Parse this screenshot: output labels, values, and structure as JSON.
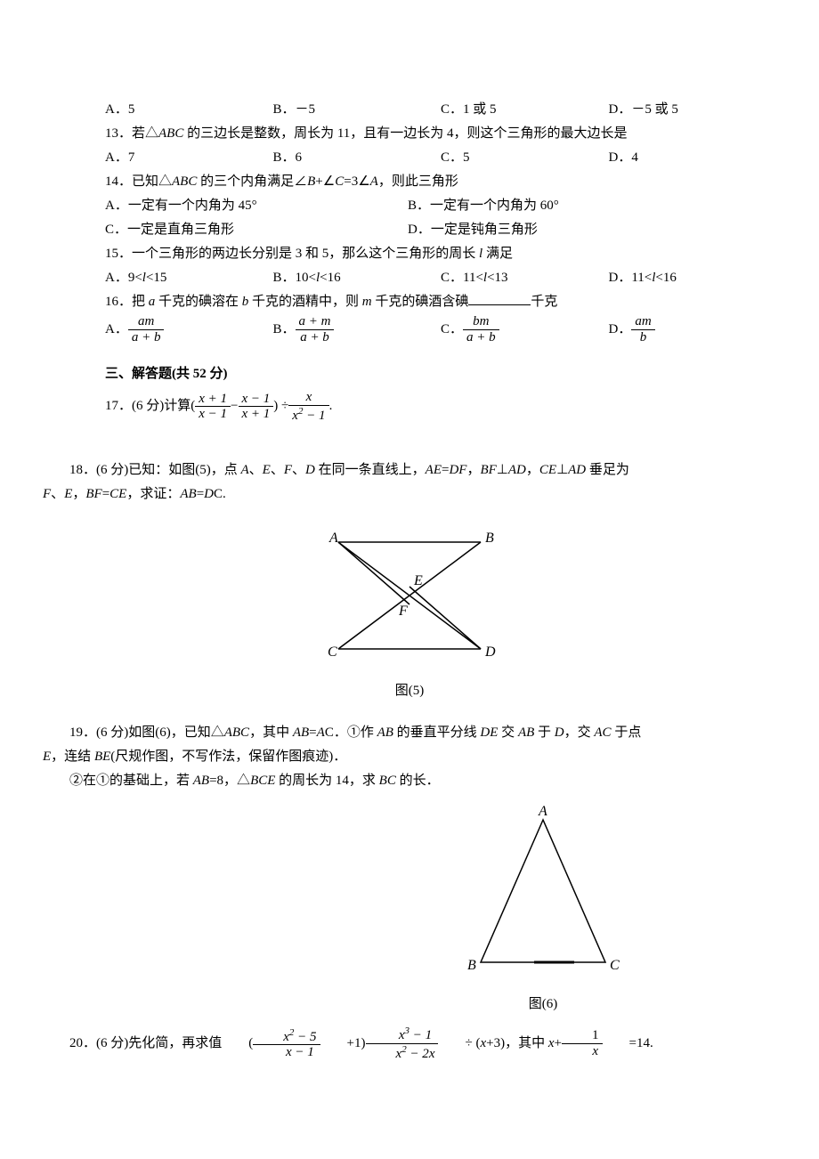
{
  "q12_opts": {
    "a": "A．5",
    "b": "B．－5",
    "c": "C．1 或 5",
    "d": "D．－5 或 5"
  },
  "q13": {
    "text": "13．若△<span class='italic'>ABC</span> 的三边长是整数，周长为 11，且有一边长为 4，则这个三角形的最大边长是",
    "a": "A．7",
    "b": "B．6",
    "c": "C．5",
    "d": "D．4"
  },
  "q14": {
    "text": "14．已知△<span class='italic'>ABC</span> 的三个内角满足∠<span class='italic'>B</span>+∠<span class='italic'>C</span>=3∠<span class='italic'>A</span>，则此三角形",
    "a": "A．一定有一个内角为 45°",
    "b": "B．一定有一个内角为 60°",
    "c": "C．一定是直角三角形",
    "d": "D．一定是钝角三角形"
  },
  "q15": {
    "text": "15．一个三角形的两边长分别是 3 和 5，那么这个三角形的周长 <span class='italic'>l</span> 满足",
    "a": "A．9<<span class='italic'>l</span><15",
    "b": "B．10<<span class='italic'>l</span><16",
    "c": "C．11<<span class='italic'>l</span><13",
    "d": "D．11<<span class='italic'>l</span><16"
  },
  "q16": {
    "text": "16．把 <span class='italic'>a</span> 千克的碘溶在 <span class='italic'>b</span> 千克的酒精中，则 <span class='italic'>m</span> 千克的碘酒含碘",
    "suffix": "千克",
    "a_num": "am",
    "a_den": "a + b",
    "b_num": "a + m",
    "b_den": "a + b",
    "c_num": "bm",
    "c_den": "a + b",
    "d_num": "am",
    "d_den": "b"
  },
  "section3": "三、解答题(共 52 分)",
  "q17": {
    "prefix": "17．(6 分)计算",
    "f1_num": "x + 1",
    "f1_den": "x − 1",
    "f2_num": "x − 1",
    "f2_den": "x + 1",
    "f3_num": "x",
    "f3_den_raw": "x² − 1"
  },
  "q18": {
    "line1": "18．(6 分)已知：如图(5)，点 <span class='italic'>A</span>、<span class='italic'>E</span>、<span class='italic'>F</span>、<span class='italic'>D</span> 在同一条直线上，<span class='italic'>AE</span>=<span class='italic'>DF</span>，<span class='italic'>BF</span>⊥<span class='italic'>AD</span>，<span class='italic'>CE</span>⊥<span class='italic'>AD</span> 垂足为",
    "line2": "<span class='italic'>F</span>、<span class='italic'>E</span>，<span class='italic'>BF</span>=<span class='italic'>CE</span>，求证：<span class='italic'>AB</span>=<span class='italic'>D</span>C."
  },
  "fig5": {
    "labels": {
      "A": "A",
      "B": "B",
      "E": "E",
      "F": "F",
      "C": "C",
      "D": "D"
    },
    "caption": "图(5)"
  },
  "q19": {
    "line1": "19．(6 分)如图(6)，已知△<span class='italic'>ABC</span>，其中 <span class='italic'>AB</span>=<span class='italic'>A</span>C．①作 <span class='italic'>AB</span> 的垂直平分线 <span class='italic'>DE</span> 交 <span class='italic'>AB</span> 于 <span class='italic'>D</span>，交 <span class='italic'>AC</span> 于点",
    "line2": "<span class='italic'>E</span>，连结 <span class='italic'>BE</span>(尺规作图，不写作法，保留作图痕迹)．",
    "line3": "②在①的基础上，若 <span class='italic'>AB</span>=8，△<span class='italic'>BCE</span> 的周长为 14，求 <span class='italic'>BC</span> 的长．"
  },
  "fig6": {
    "labels": {
      "A": "A",
      "B": "B",
      "C": "C"
    },
    "caption": "图(6)"
  },
  "q20": {
    "prefix": "20．(6 分)先化简，再求值",
    "f1_num_raw": "x² − 5",
    "f1_den": "x − 1",
    "f2_num_raw": "x³ − 1",
    "f2_den_raw": "x² − 2x",
    "mid": " ÷ (<span class='italic'>x</span>+3)，其中 <span class='italic'>x</span>+",
    "f3_num": "1",
    "f3_den": "x",
    "suffix": " =14."
  }
}
